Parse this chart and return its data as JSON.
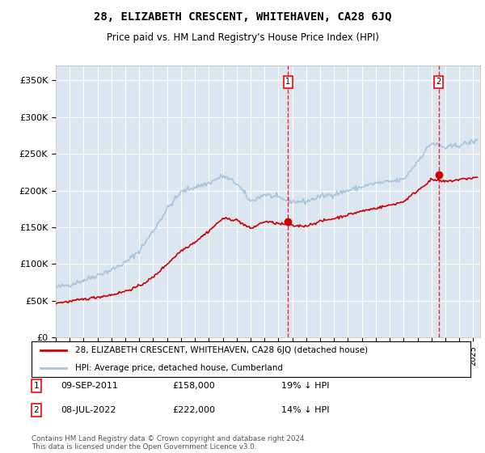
{
  "title": "28, ELIZABETH CRESCENT, WHITEHAVEN, CA28 6JQ",
  "subtitle": "Price paid vs. HM Land Registry's House Price Index (HPI)",
  "ylabel_ticks": [
    "£0",
    "£50K",
    "£100K",
    "£150K",
    "£200K",
    "£250K",
    "£300K",
    "£350K"
  ],
  "ytick_values": [
    0,
    50000,
    100000,
    150000,
    200000,
    250000,
    300000,
    350000
  ],
  "ylim": [
    0,
    370000
  ],
  "xlim_start": 1995.0,
  "xlim_end": 2025.5,
  "plot_bg_color": "#dce6f0",
  "grid_color": "#ffffff",
  "hpi_color": "#aac4e0",
  "price_color": "#cc0000",
  "transaction1_x": 2011.69,
  "transaction1_y": 158000,
  "transaction2_x": 2022.52,
  "transaction2_y": 222000,
  "legend_line1": "28, ELIZABETH CRESCENT, WHITEHAVEN, CA28 6JQ (detached house)",
  "legend_line2": "HPI: Average price, detached house, Cumberland",
  "note1_label": "1",
  "note1_date": "09-SEP-2011",
  "note1_price": "£158,000",
  "note1_pct": "19% ↓ HPI",
  "note2_label": "2",
  "note2_date": "08-JUL-2022",
  "note2_price": "£222,000",
  "note2_pct": "14% ↓ HPI",
  "footer": "Contains HM Land Registry data © Crown copyright and database right 2024.\nThis data is licensed under the Open Government Licence v3.0.",
  "hpi_anchors_x": [
    1995,
    1996,
    1997,
    1998,
    1999,
    2000,
    2001,
    2002,
    2003,
    2004,
    2005,
    2006,
    2007,
    2008,
    2009,
    2010,
    2011,
    2012,
    2013,
    2014,
    2015,
    2016,
    2017,
    2018,
    2019,
    2020,
    2021,
    2022,
    2023,
    2024,
    2025.3
  ],
  "hpi_anchors_y": [
    68000,
    72000,
    78000,
    85000,
    92000,
    102000,
    118000,
    145000,
    175000,
    198000,
    205000,
    210000,
    220000,
    210000,
    185000,
    195000,
    190000,
    185000,
    185000,
    192000,
    195000,
    200000,
    205000,
    210000,
    212000,
    215000,
    240000,
    265000,
    258000,
    262000,
    268000
  ],
  "price_anchors_x": [
    1995,
    1996,
    1997,
    1998,
    1999,
    2000,
    2001,
    2002,
    2003,
    2004,
    2005,
    2006,
    2007,
    2008,
    2009,
    2010,
    2011,
    2012,
    2013,
    2014,
    2015,
    2016,
    2017,
    2018,
    2019,
    2020,
    2021,
    2022,
    2023,
    2024,
    2025.3
  ],
  "price_anchors_y": [
    47000,
    49000,
    52000,
    55000,
    58000,
    63000,
    70000,
    82000,
    100000,
    118000,
    130000,
    145000,
    162000,
    160000,
    148000,
    158000,
    155000,
    152000,
    152000,
    158000,
    162000,
    167000,
    172000,
    176000,
    180000,
    185000,
    200000,
    215000,
    212000,
    215000,
    218000
  ]
}
